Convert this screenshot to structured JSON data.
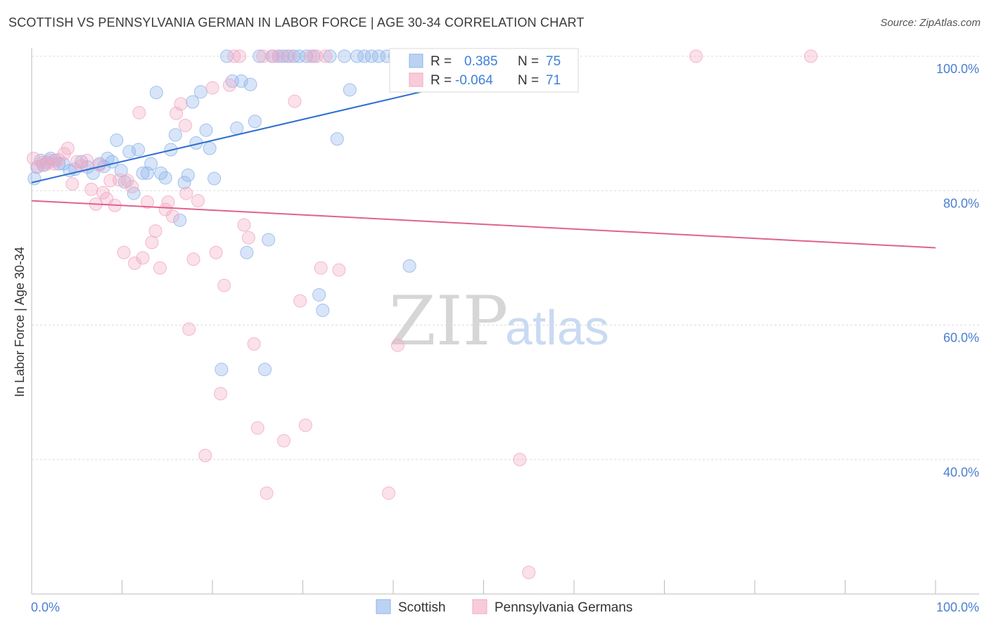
{
  "title": "SCOTTISH VS PENNSYLVANIA GERMAN IN LABOR FORCE | AGE 30-34 CORRELATION CHART",
  "source": "Source: ZipAtlas.com",
  "watermark": {
    "zip": "ZIP",
    "atlas": "atlas"
  },
  "chart_data": {
    "type": "scatter",
    "title": "SCOTTISH VS PENNSYLVANIA GERMAN IN LABOR FORCE | AGE 30-34 CORRELATION CHART",
    "xlabel": "",
    "ylabel": "In Labor Force | Age 30-34",
    "xlim": [
      0,
      100
    ],
    "ylim": [
      20,
      100
    ],
    "x_tick_labels": [
      "0.0%",
      "100.0%"
    ],
    "y_ticks": [
      40,
      60,
      80,
      100
    ],
    "y_tick_labels": [
      "40.0%",
      "60.0%",
      "80.0%",
      "100.0%"
    ],
    "grid": true,
    "legend_position": "top-center",
    "series": [
      {
        "name": "Scottish",
        "color": "#8fb4ea",
        "line_color": "#2f6fd0",
        "R": "0.385",
        "N": "75",
        "trend": {
          "x": [
            0,
            60
          ],
          "y": [
            81.2,
            100
          ]
        },
        "points": [
          [
            0.3,
            81.8
          ],
          [
            0.6,
            83.5
          ],
          [
            1.0,
            84.5
          ],
          [
            1.3,
            83.8
          ],
          [
            1.7,
            84.2
          ],
          [
            2.1,
            84.8
          ],
          [
            2.6,
            84.5
          ],
          [
            3.0,
            84.0
          ],
          [
            3.5,
            84.0
          ],
          [
            4.2,
            83.0
          ],
          [
            4.8,
            83.2
          ],
          [
            5.5,
            84.3
          ],
          [
            6.2,
            83.5
          ],
          [
            6.8,
            82.6
          ],
          [
            7.5,
            84.0
          ],
          [
            8.0,
            83.6
          ],
          [
            8.4,
            84.8
          ],
          [
            8.9,
            84.3
          ],
          [
            9.4,
            87.5
          ],
          [
            9.9,
            83.0
          ],
          [
            10.3,
            81.3
          ],
          [
            10.8,
            85.8
          ],
          [
            11.3,
            79.6
          ],
          [
            11.8,
            86.1
          ],
          [
            12.3,
            82.6
          ],
          [
            12.8,
            82.6
          ],
          [
            13.2,
            84.0
          ],
          [
            13.8,
            94.6
          ],
          [
            14.3,
            82.6
          ],
          [
            14.8,
            81.9
          ],
          [
            15.4,
            86.1
          ],
          [
            15.9,
            88.3
          ],
          [
            16.4,
            75.6
          ],
          [
            16.9,
            81.2
          ],
          [
            17.3,
            82.3
          ],
          [
            17.8,
            93.2
          ],
          [
            18.2,
            87.1
          ],
          [
            18.7,
            94.7
          ],
          [
            19.3,
            89.0
          ],
          [
            19.7,
            86.3
          ],
          [
            20.2,
            81.8
          ],
          [
            21.0,
            53.4
          ],
          [
            21.6,
            100
          ],
          [
            22.2,
            96.3
          ],
          [
            22.7,
            89.3
          ],
          [
            23.2,
            96.3
          ],
          [
            23.8,
            70.8
          ],
          [
            24.2,
            95.8
          ],
          [
            24.7,
            90.3
          ],
          [
            25.2,
            100
          ],
          [
            25.8,
            53.4
          ],
          [
            26.2,
            72.7
          ],
          [
            26.7,
            100
          ],
          [
            27.3,
            100
          ],
          [
            27.8,
            100
          ],
          [
            28.3,
            100
          ],
          [
            29.0,
            100
          ],
          [
            29.6,
            100
          ],
          [
            30.4,
            100
          ],
          [
            31.2,
            100
          ],
          [
            31.8,
            64.5
          ],
          [
            32.2,
            62.2
          ],
          [
            33.0,
            100
          ],
          [
            33.8,
            87.7
          ],
          [
            34.6,
            100
          ],
          [
            35.2,
            95.0
          ],
          [
            36.0,
            100
          ],
          [
            36.8,
            100
          ],
          [
            37.6,
            100
          ],
          [
            38.4,
            100
          ],
          [
            39.3,
            100
          ],
          [
            40.2,
            100
          ],
          [
            41.2,
            100
          ],
          [
            41.8,
            68.8
          ],
          [
            50.0,
            100
          ]
        ]
      },
      {
        "name": "Pennsylvania Germans",
        "color": "#f2a8c4",
        "line_color": "#e0628e",
        "R": "-0.064",
        "N": "71",
        "trend": {
          "x": [
            0,
            100
          ],
          "y": [
            78.5,
            71.5
          ]
        },
        "points": [
          [
            0.2,
            84.8
          ],
          [
            0.7,
            83.6
          ],
          [
            1.2,
            84.2
          ],
          [
            1.6,
            83.9
          ],
          [
            2.0,
            84.5
          ],
          [
            2.5,
            84.0
          ],
          [
            3.0,
            84.6
          ],
          [
            3.6,
            85.5
          ],
          [
            4.0,
            86.3
          ],
          [
            4.5,
            81.0
          ],
          [
            5.0,
            84.3
          ],
          [
            5.5,
            83.7
          ],
          [
            6.1,
            84.5
          ],
          [
            6.6,
            80.2
          ],
          [
            7.1,
            78.0
          ],
          [
            7.5,
            83.8
          ],
          [
            7.9,
            79.7
          ],
          [
            8.3,
            78.8
          ],
          [
            8.7,
            81.5
          ],
          [
            9.2,
            77.8
          ],
          [
            9.7,
            81.6
          ],
          [
            10.2,
            70.8
          ],
          [
            10.6,
            81.5
          ],
          [
            11.1,
            80.6
          ],
          [
            11.4,
            69.2
          ],
          [
            11.9,
            91.6
          ],
          [
            12.3,
            70.0
          ],
          [
            12.8,
            78.3
          ],
          [
            13.3,
            72.3
          ],
          [
            13.7,
            74.0
          ],
          [
            14.2,
            68.5
          ],
          [
            14.8,
            77.2
          ],
          [
            15.1,
            78.3
          ],
          [
            15.6,
            76.2
          ],
          [
            16.0,
            91.5
          ],
          [
            16.5,
            92.9
          ],
          [
            17.0,
            89.7
          ],
          [
            17.1,
            79.6
          ],
          [
            17.4,
            59.4
          ],
          [
            17.9,
            69.8
          ],
          [
            18.4,
            78.5
          ],
          [
            19.2,
            40.6
          ],
          [
            20.0,
            95.3
          ],
          [
            20.4,
            70.8
          ],
          [
            20.9,
            49.8
          ],
          [
            21.3,
            65.9
          ],
          [
            21.9,
            95.7
          ],
          [
            22.4,
            100
          ],
          [
            23.0,
            100
          ],
          [
            23.5,
            74.9
          ],
          [
            24.0,
            73.0
          ],
          [
            24.6,
            57.2
          ],
          [
            25.0,
            44.7
          ],
          [
            25.6,
            100
          ],
          [
            26.0,
            35.0
          ],
          [
            26.6,
            100
          ],
          [
            27.3,
            100
          ],
          [
            27.9,
            42.8
          ],
          [
            28.6,
            100
          ],
          [
            29.1,
            93.3
          ],
          [
            29.7,
            63.6
          ],
          [
            30.3,
            45.1
          ],
          [
            30.9,
            100
          ],
          [
            31.5,
            100
          ],
          [
            32.0,
            68.5
          ],
          [
            32.5,
            100
          ],
          [
            34.0,
            68.2
          ],
          [
            39.5,
            35.0
          ],
          [
            40.5,
            57.0
          ],
          [
            54.0,
            40.0
          ],
          [
            55.0,
            23.2
          ]
        ]
      },
      {
        "name": "",
        "points_extra_pink": [
          [
            73.5,
            100
          ],
          [
            86.2,
            100
          ],
          [
            44.5,
            100
          ]
        ]
      }
    ]
  },
  "legend": {
    "items": [
      {
        "name": "Scottish",
        "r_label": "R =",
        "r_value": "0.385",
        "n_label": "N =",
        "n_value": "75"
      },
      {
        "name": "Pennsylvania Germans",
        "r_label": "R =",
        "r_value": "-0.064",
        "n_label": "N =",
        "n_value": "71"
      }
    ]
  },
  "colors": {
    "blue_fill": "#8fb4ea",
    "blue_line": "#2f6fd0",
    "pink_fill": "#f2a8c4",
    "pink_line": "#e0628e",
    "grid": "#dcdcdc",
    "tick_label": "#4a7fd0"
  }
}
